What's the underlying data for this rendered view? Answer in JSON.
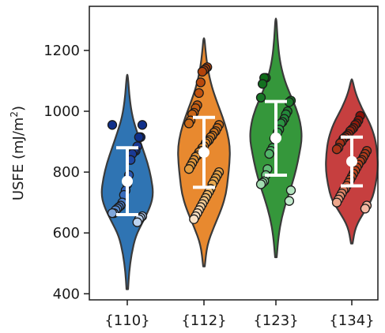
{
  "chart_data": {
    "type": "violin",
    "title": "",
    "xlabel": "",
    "ylabel": "USFE (mJ/m",
    "ylabel_sup": "2",
    "ylabel_end": ")",
    "ylim": [
      380,
      1345
    ],
    "yticks": [
      400,
      600,
      800,
      1000,
      1200
    ],
    "categories": [
      "{110}",
      "{112}",
      "{123}",
      "{134}"
    ],
    "grid": false,
    "legend": "none",
    "series": [
      {
        "category": "{110}",
        "color": "#2f74b3",
        "violin_range": [
          415,
          1120
        ],
        "density": [
          [
            415,
            0.03
          ],
          [
            470,
            0.07
          ],
          [
            530,
            0.16
          ],
          [
            590,
            0.32
          ],
          [
            640,
            0.62
          ],
          [
            690,
            0.9
          ],
          [
            730,
            1.0
          ],
          [
            780,
            0.92
          ],
          [
            830,
            0.78
          ],
          [
            880,
            0.58
          ],
          [
            930,
            0.38
          ],
          [
            980,
            0.2
          ],
          [
            1040,
            0.09
          ],
          [
            1120,
            0.02
          ]
        ],
        "mean": 770,
        "err_low": 660,
        "err_high": 880,
        "points": [
          {
            "v": 955,
            "c": "#10308a"
          },
          {
            "v": 955,
            "c": "#10308a"
          },
          {
            "v": 915,
            "c": "#10308a"
          },
          {
            "v": 915,
            "c": "#10308a"
          },
          {
            "v": 885,
            "c": "#1a3a95"
          },
          {
            "v": 870,
            "c": "#1a3a95"
          },
          {
            "v": 870,
            "c": "#1a3a95"
          },
          {
            "v": 860,
            "c": "#1a3a95"
          },
          {
            "v": 840,
            "c": "#1f46a0"
          },
          {
            "v": 790,
            "c": "#2a56ae"
          },
          {
            "v": 760,
            "c": "#3060b5"
          },
          {
            "v": 740,
            "c": "#3060b5"
          },
          {
            "v": 725,
            "c": "#3a6cbc"
          },
          {
            "v": 700,
            "c": "#4a7cc5"
          },
          {
            "v": 690,
            "c": "#4a7cc5"
          },
          {
            "v": 685,
            "c": "#4a7cc5"
          },
          {
            "v": 680,
            "c": "#5589cc"
          },
          {
            "v": 675,
            "c": "#5589cc"
          },
          {
            "v": 665,
            "c": "#7fa6da"
          },
          {
            "v": 665,
            "c": "#7fa6da"
          },
          {
            "v": 655,
            "c": "#a9c4e8"
          },
          {
            "v": 650,
            "c": "#a9c4e8"
          },
          {
            "v": 645,
            "c": "#bcd2ee"
          },
          {
            "v": 635,
            "c": "#bcd2ee"
          }
        ]
      },
      {
        "category": "{112}",
        "color": "#e8892f",
        "violin_range": [
          490,
          1240
        ],
        "density": [
          [
            490,
            0.03
          ],
          [
            560,
            0.12
          ],
          [
            620,
            0.38
          ],
          [
            680,
            0.68
          ],
          [
            730,
            0.85
          ],
          [
            780,
            0.92
          ],
          [
            830,
            0.98
          ],
          [
            880,
            1.0
          ],
          [
            930,
            0.9
          ],
          [
            980,
            0.72
          ],
          [
            1030,
            0.5
          ],
          [
            1080,
            0.3
          ],
          [
            1140,
            0.14
          ],
          [
            1200,
            0.06
          ],
          [
            1240,
            0.02
          ]
        ],
        "mean": 865,
        "err_low": 750,
        "err_high": 980,
        "points": [
          {
            "v": 1145,
            "c": "#b3430a"
          },
          {
            "v": 1140,
            "c": "#b3430a"
          },
          {
            "v": 1135,
            "c": "#b3430a"
          },
          {
            "v": 1130,
            "c": "#b3430a"
          },
          {
            "v": 1095,
            "c": "#b84a0d"
          },
          {
            "v": 1060,
            "c": "#c0520f"
          },
          {
            "v": 1020,
            "c": "#c05a10"
          },
          {
            "v": 1010,
            "c": "#c45e12"
          },
          {
            "v": 995,
            "c": "#c86414"
          },
          {
            "v": 990,
            "c": "#c86414"
          },
          {
            "v": 970,
            "c": "#cb6a18"
          },
          {
            "v": 960,
            "c": "#cb6a18"
          },
          {
            "v": 955,
            "c": "#cf701c"
          },
          {
            "v": 945,
            "c": "#cf701c"
          },
          {
            "v": 935,
            "c": "#d3761f"
          },
          {
            "v": 930,
            "c": "#d3761f"
          },
          {
            "v": 920,
            "c": "#d57b22"
          },
          {
            "v": 915,
            "c": "#d57b22"
          },
          {
            "v": 905,
            "c": "#d88026"
          },
          {
            "v": 900,
            "c": "#d88026"
          },
          {
            "v": 895,
            "c": "#da852a"
          },
          {
            "v": 885,
            "c": "#da852a"
          },
          {
            "v": 880,
            "c": "#dc8a2e"
          },
          {
            "v": 870,
            "c": "#dc8a2e"
          },
          {
            "v": 865,
            "c": "#de8f33"
          },
          {
            "v": 855,
            "c": "#de8f33"
          },
          {
            "v": 850,
            "c": "#e09438"
          },
          {
            "v": 840,
            "c": "#e09438"
          },
          {
            "v": 830,
            "c": "#e2993d"
          },
          {
            "v": 820,
            "c": "#e2993d"
          },
          {
            "v": 810,
            "c": "#e49e42"
          },
          {
            "v": 800,
            "c": "#e49e42"
          },
          {
            "v": 790,
            "c": "#e6a348"
          },
          {
            "v": 780,
            "c": "#e6a348"
          },
          {
            "v": 770,
            "c": "#e8a84e"
          },
          {
            "v": 760,
            "c": "#e8a84e"
          },
          {
            "v": 745,
            "c": "#eaae56"
          },
          {
            "v": 735,
            "c": "#edb565"
          },
          {
            "v": 725,
            "c": "#edb565"
          },
          {
            "v": 715,
            "c": "#f0bd75"
          },
          {
            "v": 705,
            "c": "#f2c484"
          },
          {
            "v": 695,
            "c": "#f4ca92"
          },
          {
            "v": 685,
            "c": "#f6d0a0"
          },
          {
            "v": 675,
            "c": "#f8d6ad"
          },
          {
            "v": 665,
            "c": "#f9dbb8"
          },
          {
            "v": 655,
            "c": "#fadfc0"
          },
          {
            "v": 645,
            "c": "#fbe3c8"
          }
        ]
      },
      {
        "category": "{123}",
        "color": "#35973b",
        "violin_range": [
          520,
          1305
        ],
        "density": [
          [
            520,
            0.03
          ],
          [
            590,
            0.1
          ],
          [
            650,
            0.22
          ],
          [
            710,
            0.42
          ],
          [
            760,
            0.62
          ],
          [
            810,
            0.78
          ],
          [
            860,
            0.9
          ],
          [
            910,
            1.0
          ],
          [
            960,
            0.95
          ],
          [
            1010,
            0.78
          ],
          [
            1060,
            0.52
          ],
          [
            1110,
            0.3
          ],
          [
            1170,
            0.14
          ],
          [
            1240,
            0.06
          ],
          [
            1305,
            0.02
          ]
        ],
        "mean": 912,
        "err_low": 790,
        "err_high": 1032,
        "points": [
          {
            "v": 1110,
            "c": "#0f6a18"
          },
          {
            "v": 1110,
            "c": "#0f6a18"
          },
          {
            "v": 1090,
            "c": "#137020"
          },
          {
            "v": 1045,
            "c": "#177626"
          },
          {
            "v": 1035,
            "c": "#177626"
          },
          {
            "v": 1030,
            "c": "#1b7c2a"
          },
          {
            "v": 1000,
            "c": "#1f822e"
          },
          {
            "v": 990,
            "c": "#23883a"
          },
          {
            "v": 975,
            "c": "#23883a"
          },
          {
            "v": 965,
            "c": "#278e3e"
          },
          {
            "v": 960,
            "c": "#2b9442"
          },
          {
            "v": 940,
            "c": "#2f9a46"
          },
          {
            "v": 930,
            "c": "#2f9a46"
          },
          {
            "v": 915,
            "c": "#35a04c"
          },
          {
            "v": 910,
            "c": "#35a04c"
          },
          {
            "v": 880,
            "c": "#3fa858"
          },
          {
            "v": 870,
            "c": "#48ae60"
          },
          {
            "v": 860,
            "c": "#52b46a"
          },
          {
            "v": 810,
            "c": "#62bc78"
          },
          {
            "v": 790,
            "c": "#72c486"
          },
          {
            "v": 770,
            "c": "#82cc94"
          },
          {
            "v": 765,
            "c": "#92d4a2"
          },
          {
            "v": 760,
            "c": "#a2dcb0"
          },
          {
            "v": 740,
            "c": "#b2e3be"
          },
          {
            "v": 705,
            "c": "#c2eacc"
          }
        ]
      },
      {
        "category": "{134}",
        "color": "#c63f3f",
        "violin_range": [
          565,
          1105
        ],
        "density": [
          [
            565,
            0.03
          ],
          [
            620,
            0.14
          ],
          [
            670,
            0.48
          ],
          [
            710,
            0.78
          ],
          [
            760,
            0.92
          ],
          [
            810,
            1.0
          ],
          [
            860,
            0.98
          ],
          [
            910,
            0.9
          ],
          [
            960,
            0.7
          ],
          [
            1010,
            0.38
          ],
          [
            1060,
            0.14
          ],
          [
            1105,
            0.02
          ]
        ],
        "mean": 835,
        "err_low": 755,
        "err_high": 915,
        "points": [
          {
            "v": 985,
            "c": "#8a1008"
          },
          {
            "v": 970,
            "c": "#8e1409"
          },
          {
            "v": 960,
            "c": "#921a0c"
          },
          {
            "v": 955,
            "c": "#921a0c"
          },
          {
            "v": 945,
            "c": "#96200e"
          },
          {
            "v": 940,
            "c": "#96200e"
          },
          {
            "v": 935,
            "c": "#9a2410"
          },
          {
            "v": 925,
            "c": "#9e2812"
          },
          {
            "v": 920,
            "c": "#9e2812"
          },
          {
            "v": 915,
            "c": "#a22c14"
          },
          {
            "v": 910,
            "c": "#a22c14"
          },
          {
            "v": 900,
            "c": "#a63016"
          },
          {
            "v": 895,
            "c": "#a63016"
          },
          {
            "v": 880,
            "c": "#aa3418"
          },
          {
            "v": 875,
            "c": "#aa3418"
          },
          {
            "v": 870,
            "c": "#ae381a"
          },
          {
            "v": 860,
            "c": "#ae381a"
          },
          {
            "v": 850,
            "c": "#b23c1c"
          },
          {
            "v": 840,
            "c": "#b23c1c"
          },
          {
            "v": 835,
            "c": "#b6401e"
          },
          {
            "v": 825,
            "c": "#b6401e"
          },
          {
            "v": 815,
            "c": "#ba4420"
          },
          {
            "v": 805,
            "c": "#ba4420"
          },
          {
            "v": 795,
            "c": "#be4822"
          },
          {
            "v": 785,
            "c": "#c24c26"
          },
          {
            "v": 775,
            "c": "#c24c26"
          },
          {
            "v": 765,
            "c": "#c65230"
          },
          {
            "v": 755,
            "c": "#cc5c3c"
          },
          {
            "v": 745,
            "c": "#d26848"
          },
          {
            "v": 740,
            "c": "#d87456"
          },
          {
            "v": 730,
            "c": "#de8264"
          },
          {
            "v": 720,
            "c": "#e48f72"
          },
          {
            "v": 710,
            "c": "#ea9c80"
          },
          {
            "v": 700,
            "c": "#eea78c"
          },
          {
            "v": 690,
            "c": "#f1b098"
          },
          {
            "v": 680,
            "c": "#f4b9a4"
          }
        ]
      }
    ]
  }
}
